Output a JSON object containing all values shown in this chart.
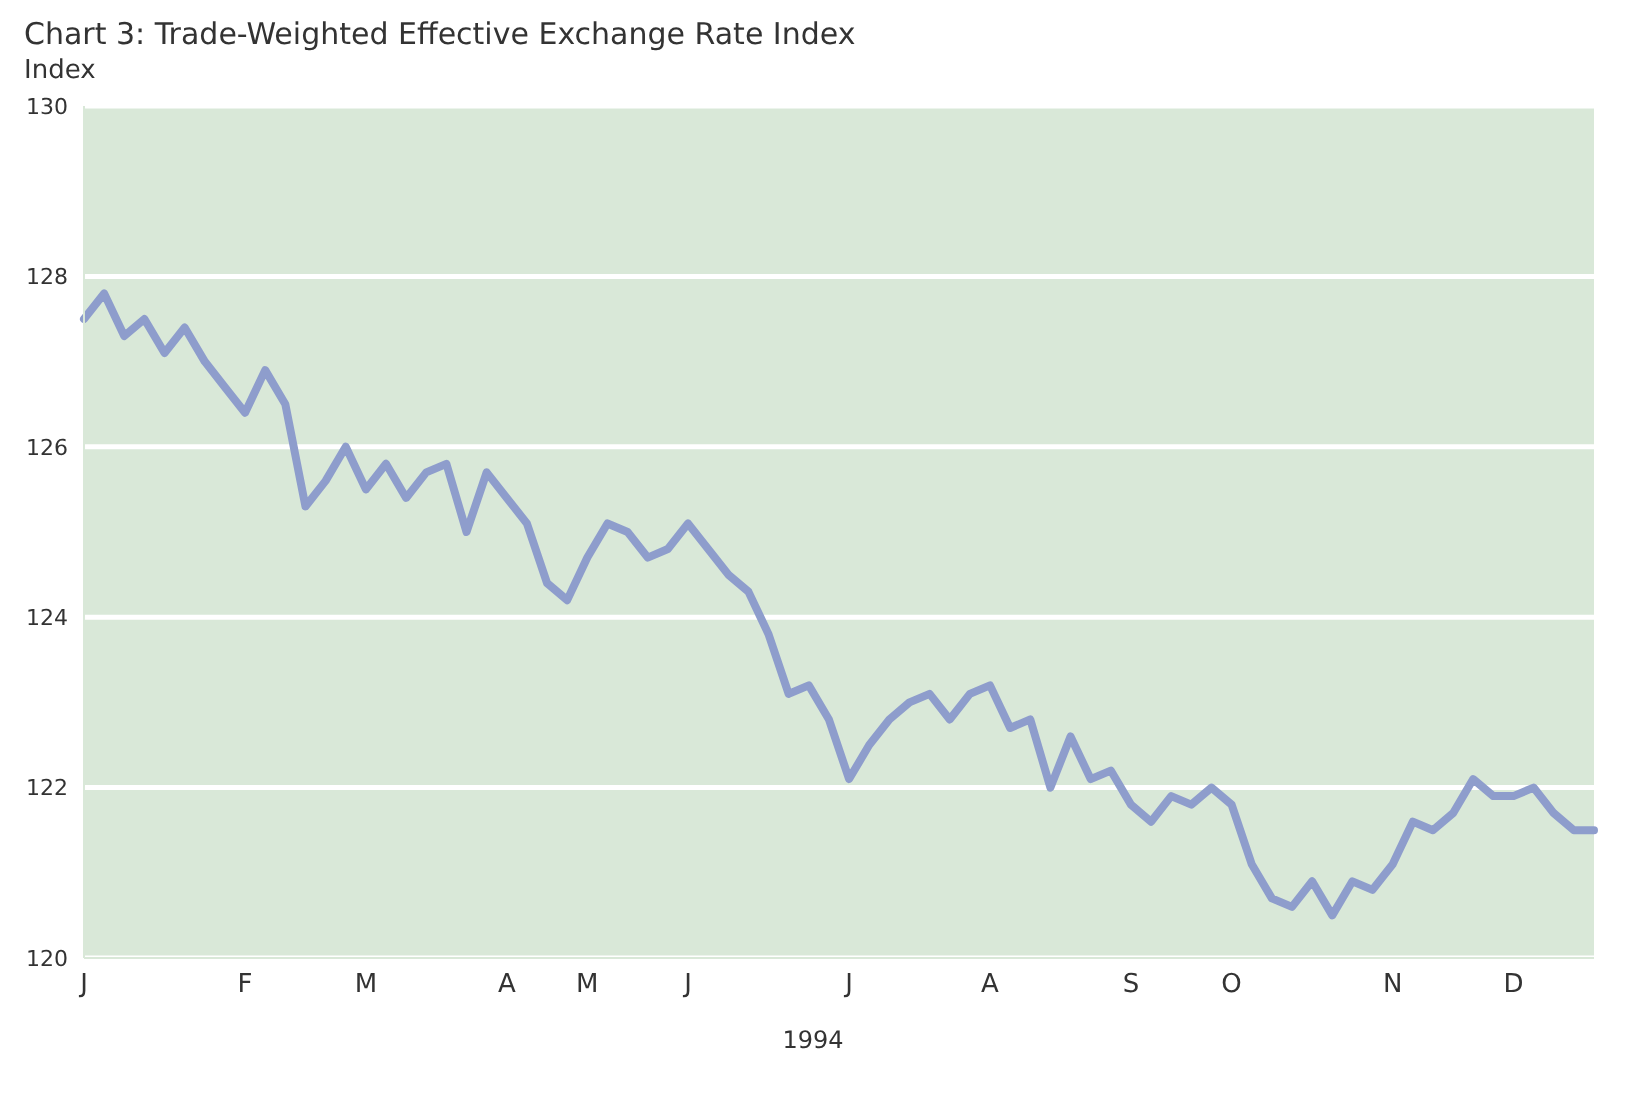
{
  "chart_data": {
    "type": "line",
    "title": "Chart 3: Trade-Weighted Effective Exchange Rate Index",
    "ylabel": "Index",
    "xlabel": "1994",
    "categories": [
      "J",
      null,
      null,
      null,
      null,
      null,
      null,
      null,
      "F",
      null,
      null,
      null,
      null,
      null,
      "M",
      null,
      null,
      null,
      null,
      null,
      null,
      "A",
      null,
      null,
      null,
      "M",
      null,
      null,
      null,
      null,
      "J",
      null,
      null,
      null,
      null,
      null,
      null,
      null,
      "J",
      null,
      null,
      null,
      null,
      null,
      null,
      "A",
      null,
      null,
      null,
      null,
      null,
      null,
      "S",
      null,
      null,
      null,
      null,
      "O",
      null,
      null,
      null,
      null,
      null,
      null,
      null,
      "N",
      null,
      null,
      null,
      null,
      null,
      "D",
      null,
      null,
      null,
      null
    ],
    "series": [
      {
        "color": "#8e9dcc",
        "values": [
          127.5,
          127.8,
          127.3,
          127.5,
          127.1,
          127.4,
          127.0,
          126.7,
          126.4,
          126.9,
          126.5,
          125.3,
          125.6,
          126.0,
          125.5,
          125.8,
          125.4,
          125.7,
          125.8,
          125.0,
          125.7,
          125.4,
          125.1,
          124.4,
          124.2,
          124.7,
          125.1,
          125.0,
          124.7,
          124.8,
          125.1,
          124.8,
          124.5,
          124.3,
          123.8,
          123.1,
          123.2,
          122.8,
          122.1,
          122.5,
          122.8,
          123.0,
          123.1,
          122.8,
          123.1,
          123.2,
          122.7,
          122.8,
          122.0,
          122.6,
          122.1,
          122.2,
          121.8,
          121.6,
          121.9,
          121.8,
          122.0,
          121.8,
          121.1,
          120.7,
          120.6,
          120.9,
          120.5,
          120.9,
          120.8,
          121.1,
          121.6,
          121.5,
          121.7,
          122.1,
          121.9,
          121.9,
          122.0,
          121.7,
          121.5,
          121.5
        ]
      }
    ],
    "ylim": [
      120,
      130
    ],
    "yticks": [
      120,
      122,
      124,
      126,
      128,
      130
    ],
    "grid": "y",
    "legend": false,
    "marker": "none",
    "line_style": "solid"
  }
}
